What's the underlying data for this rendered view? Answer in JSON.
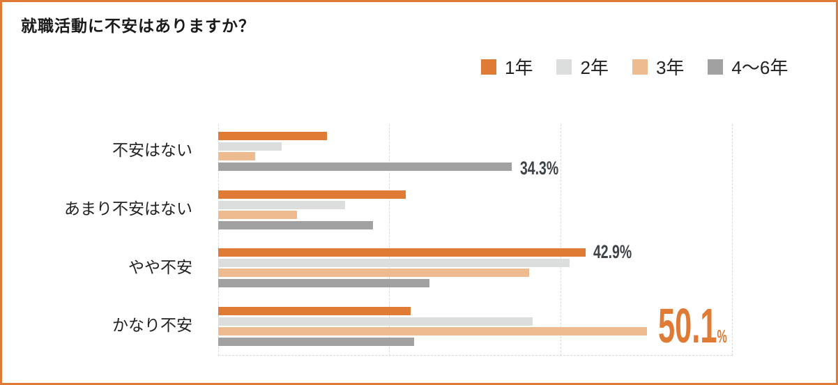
{
  "title": "就職活動に不安はありますか？",
  "colors": {
    "frame": "#e07b35",
    "y1": "#e07b35",
    "y2": "#dcdedd",
    "y3": "#eebb90",
    "y46": "#a0a1a0",
    "highlight": "#e07b35",
    "label": "#3d4348"
  },
  "legend": [
    {
      "label": "1年",
      "color": "#e07b35"
    },
    {
      "label": "2年",
      "color": "#dcdedd"
    },
    {
      "label": "3年",
      "color": "#eebb90"
    },
    {
      "label": "4〜6年",
      "color": "#a0a1a0"
    }
  ],
  "categories": [
    "不安はない",
    "あまり不安はない",
    "やや不安",
    "かなり不安"
  ],
  "annotations": [
    {
      "text": "34.3%"
    },
    {
      "text": "42.9%"
    },
    {
      "number": "50.1",
      "unit": "%"
    }
  ],
  "chart_data": {
    "type": "bar",
    "orientation": "horizontal",
    "title": "就職活動に不安はありますか？",
    "categories": [
      "不安はない",
      "あまり不安はない",
      "やや不安",
      "かなり不安"
    ],
    "series": [
      {
        "name": "1年",
        "color": "#e07b35",
        "values": [
          12.7,
          21.9,
          42.9,
          22.5
        ]
      },
      {
        "name": "2年",
        "color": "#dcdedd",
        "values": [
          7.4,
          14.8,
          41.0,
          36.7
        ]
      },
      {
        "name": "3年",
        "color": "#eebb90",
        "values": [
          4.3,
          9.2,
          36.3,
          50.1
        ]
      },
      {
        "name": "4〜6年",
        "color": "#a0a1a0",
        "values": [
          34.3,
          18.1,
          24.7,
          22.9
        ]
      }
    ],
    "data_labels": [
      {
        "category": "不安はない",
        "series": "4〜6年",
        "text": "34.3%"
      },
      {
        "category": "やや不安",
        "series": "1年",
        "text": "42.9%"
      },
      {
        "category": "かなり不安",
        "series": "3年",
        "text": "50.1%"
      }
    ],
    "xlabel": "",
    "ylabel": "",
    "xlim": [
      0,
      60
    ],
    "gridlines": [
      0,
      20,
      40,
      60
    ],
    "grid": true,
    "legend_position": "top-right"
  }
}
